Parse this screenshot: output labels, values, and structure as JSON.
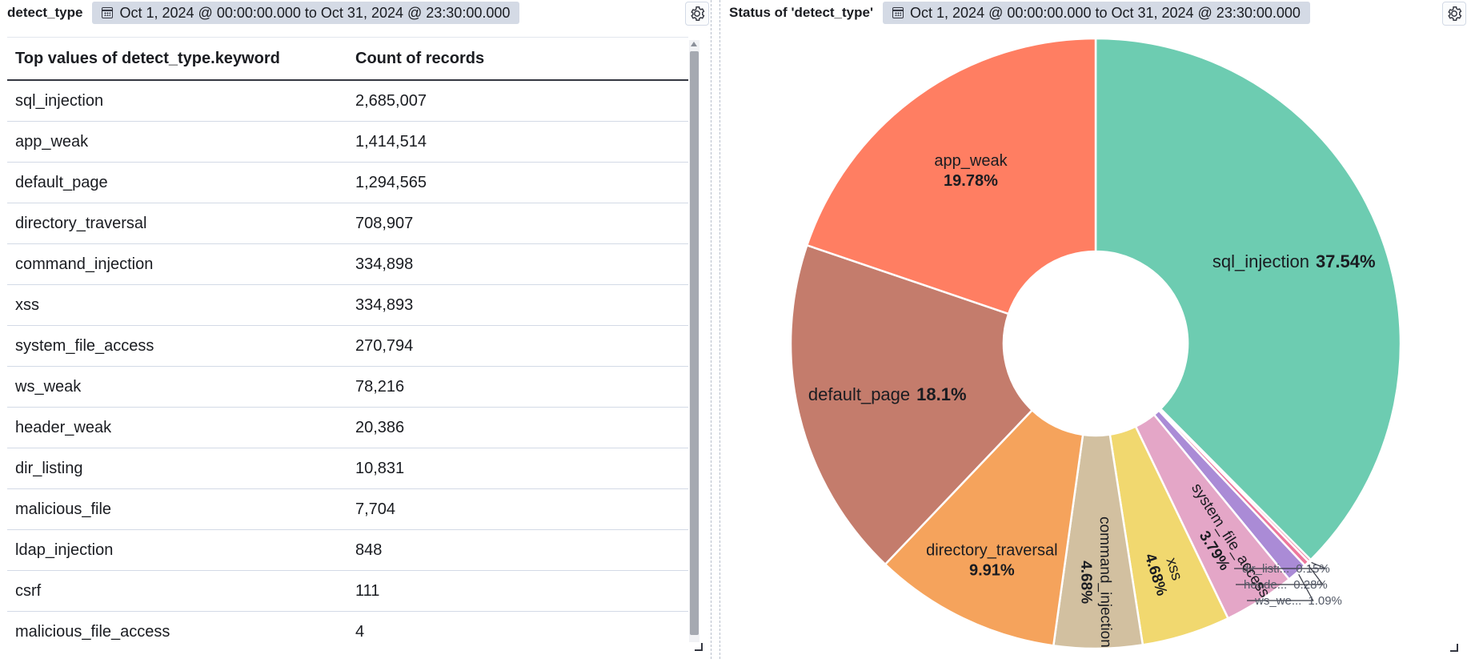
{
  "left_panel": {
    "title": "detect_type",
    "time_range": "Oct 1, 2024 @ 00:00:00.000 to Oct 31, 2024 @ 23:30:00.000",
    "table": {
      "columns": [
        "Top values of detect_type.keyword",
        "Count of records"
      ],
      "rows": [
        [
          "sql_injection",
          "2,685,007"
        ],
        [
          "app_weak",
          "1,414,514"
        ],
        [
          "default_page",
          "1,294,565"
        ],
        [
          "directory_traversal",
          "708,907"
        ],
        [
          "command_injection",
          "334,898"
        ],
        [
          "xss",
          "334,893"
        ],
        [
          "system_file_access",
          "270,794"
        ],
        [
          "ws_weak",
          "78,216"
        ],
        [
          "header_weak",
          "20,386"
        ],
        [
          "dir_listing",
          "10,831"
        ],
        [
          "malicious_file",
          "7,704"
        ],
        [
          "ldap_injection",
          "848"
        ],
        [
          "csrf",
          "111"
        ],
        [
          "malicious_file_access",
          "4"
        ]
      ]
    },
    "icons": {
      "settings": "gear-icon",
      "calendar": "calendar-icon"
    }
  },
  "right_panel": {
    "title": "Status of 'detect_type'",
    "time_range": "Oct 1, 2024 @ 00:00:00.000 to Oct 31, 2024 @ 23:30:00.000",
    "icons": {
      "settings": "gear-icon",
      "calendar": "calendar-icon"
    }
  },
  "chart_data": {
    "type": "pie",
    "donut": true,
    "slices": [
      {
        "label": "sql_injection",
        "percent": 37.54,
        "percent_label": "37.54%",
        "color": "#6dccb1"
      },
      {
        "label": "dir_listi...",
        "percent": 0.15,
        "percent_label": "0.15%",
        "color": "#ee789d",
        "outside": true
      },
      {
        "label": "heade...",
        "percent": 0.28,
        "percent_label": "0.28%",
        "color": "#ee789d",
        "outside": true
      },
      {
        "label": "ws_we...",
        "percent": 1.09,
        "percent_label": "1.09%",
        "color": "#aa8bd6",
        "outside": true
      },
      {
        "label": "system_file_access",
        "percent": 3.79,
        "percent_label": "3.79%",
        "color": "#e4a6c7"
      },
      {
        "label": "xss",
        "percent": 4.68,
        "percent_label": "4.68%",
        "color": "#f1d86f"
      },
      {
        "label": "command_injection",
        "percent": 4.68,
        "percent_label": "4.68%",
        "color": "#d2c0a0"
      },
      {
        "label": "directory_traversal",
        "percent": 9.91,
        "percent_label": "9.91%",
        "color": "#f5a35c"
      },
      {
        "label": "default_page",
        "percent": 18.1,
        "percent_label": "18.1%",
        "color": "#c47c6c"
      },
      {
        "label": "app_weak",
        "percent": 19.78,
        "percent_label": "19.78%",
        "color": "#ff7e62"
      }
    ]
  }
}
